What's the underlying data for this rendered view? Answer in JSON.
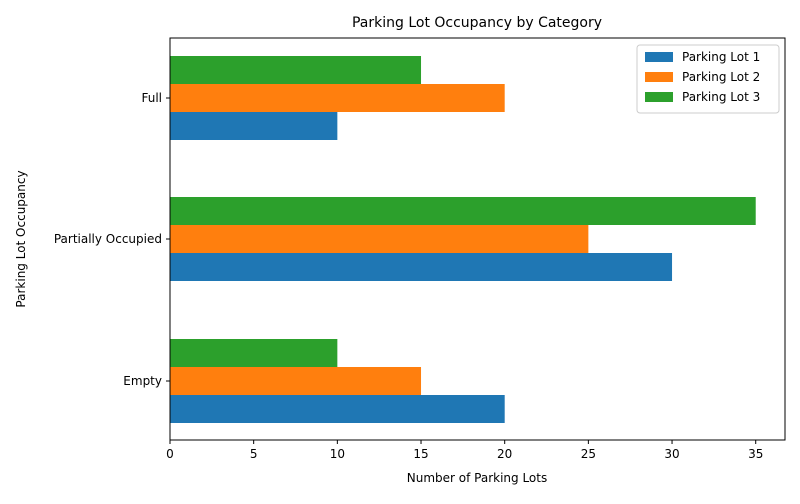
{
  "chart_data": {
    "type": "bar",
    "orientation": "horizontal",
    "title": "Parking Lot Occupancy by Category",
    "xlabel": "Number of Parking Lots",
    "ylabel": "Parking Lot Occupancy",
    "categories": [
      "Empty",
      "Partially Occupied",
      "Full"
    ],
    "series": [
      {
        "name": "Parking Lot 1",
        "color": "#1f77b4",
        "values": [
          20,
          30,
          10
        ]
      },
      {
        "name": "Parking Lot 2",
        "color": "#ff7f0e",
        "values": [
          15,
          25,
          20
        ]
      },
      {
        "name": "Parking Lot 3",
        "color": "#2ca02c",
        "values": [
          10,
          35,
          15
        ]
      }
    ],
    "xlim": [
      0,
      36.75
    ],
    "xticks": [
      0,
      5,
      10,
      15,
      20,
      25,
      30,
      35
    ],
    "grid": false,
    "legend": "top-right"
  }
}
